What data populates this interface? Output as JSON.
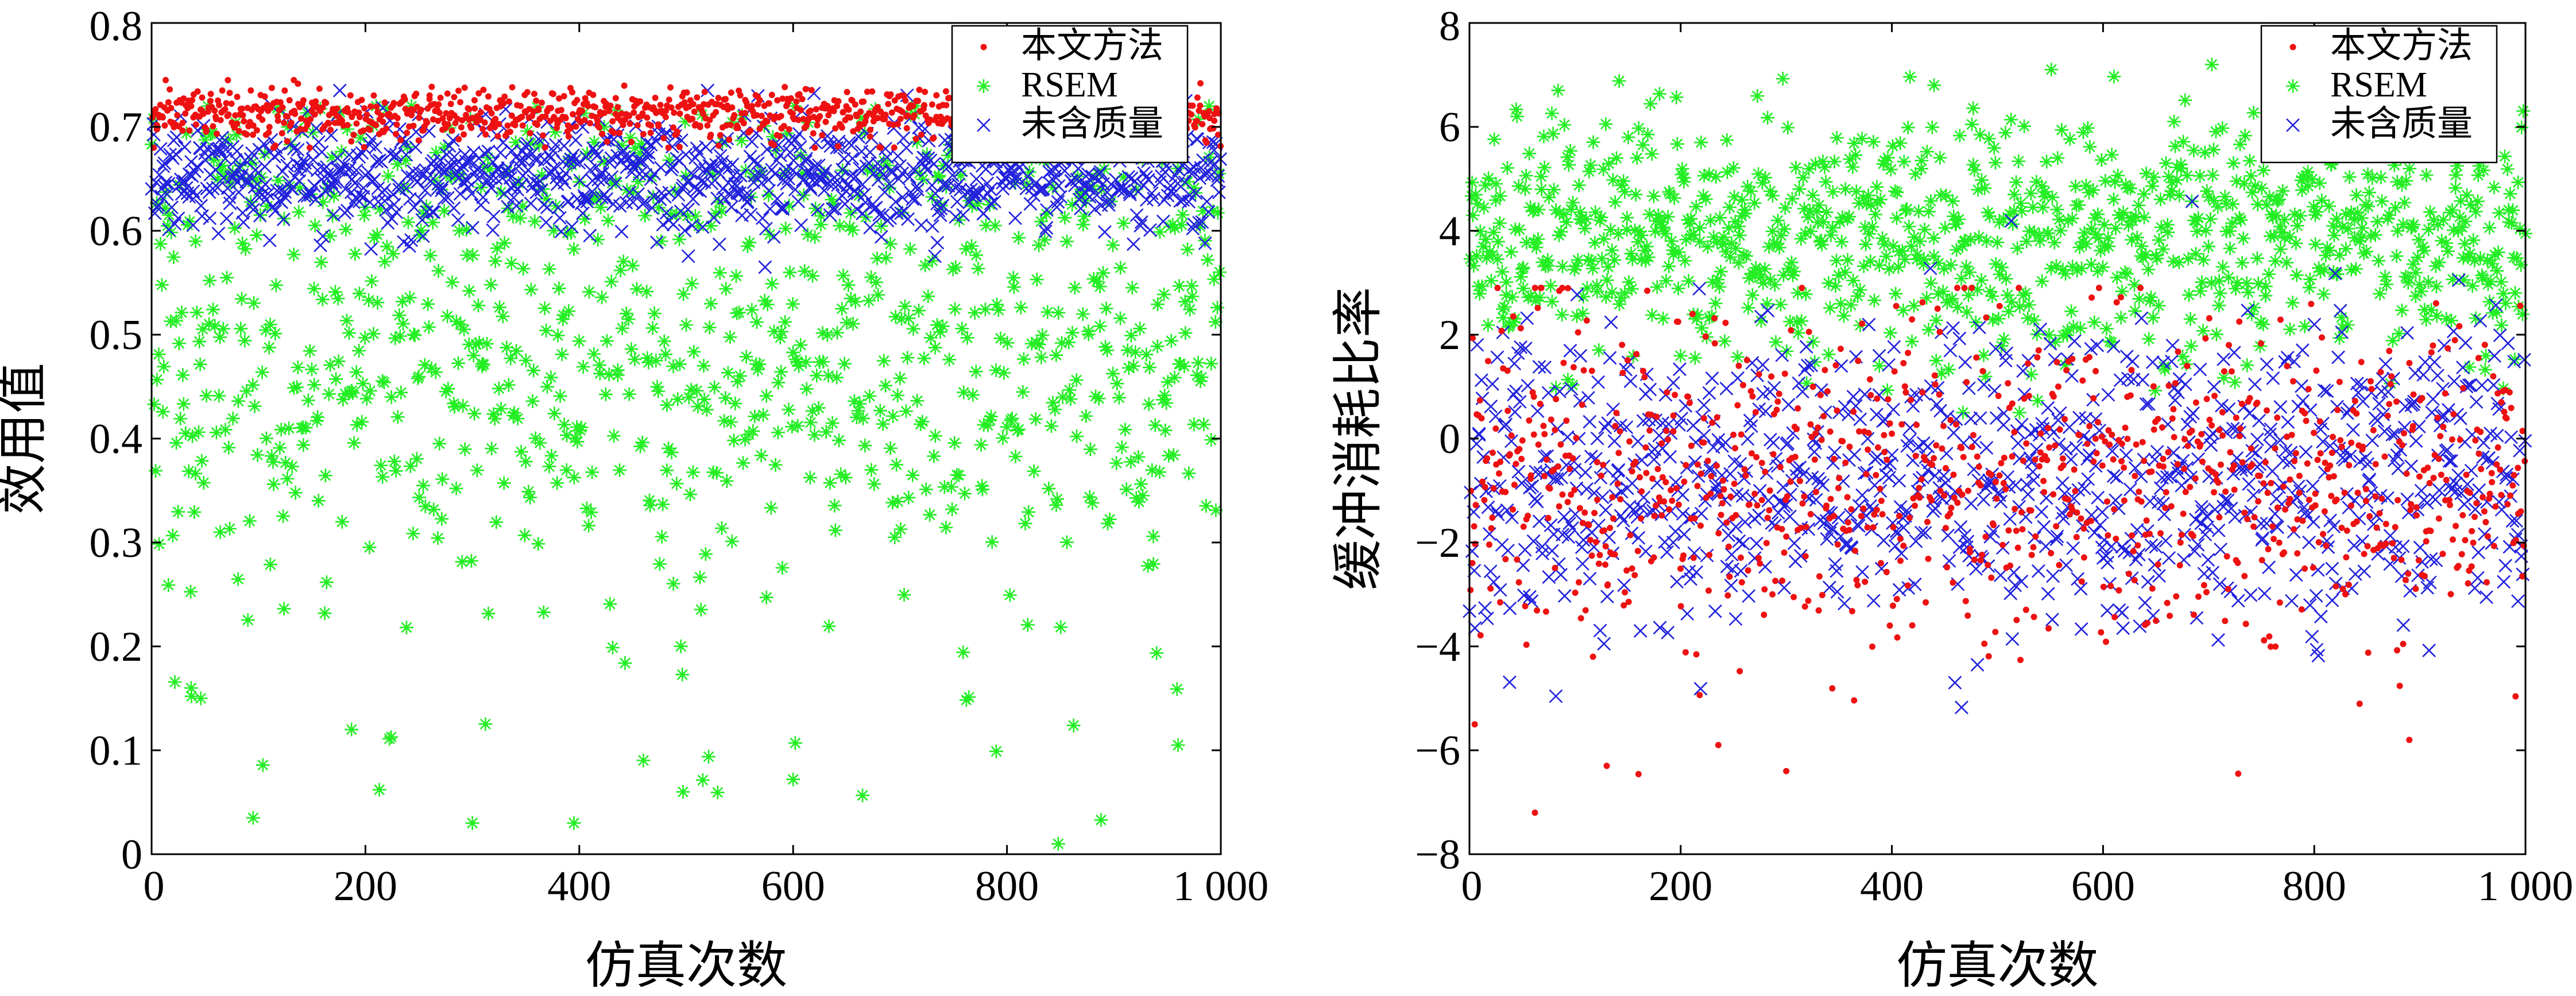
{
  "charts": [
    {
      "id": "left",
      "chart_data": {
        "type": "scatter",
        "xlabel": "仿真次数",
        "ylabel": "效用值",
        "xlim": [
          0,
          1000
        ],
        "ylim": [
          0,
          0.8
        ],
        "xticks": [
          0,
          200,
          400,
          600,
          800,
          1000
        ],
        "xtick_labels": [
          "0",
          "200",
          "400",
          "600",
          "800",
          "1 000"
        ],
        "yticks": [
          0,
          0.1,
          0.2,
          0.3,
          0.4,
          0.5,
          0.6,
          0.7,
          0.8
        ],
        "ytick_labels": [
          "0",
          "0.1",
          "0.2",
          "0.3",
          "0.4",
          "0.5",
          "0.6",
          "0.7",
          "0.8"
        ],
        "legend_position": "top-right",
        "grid": false,
        "series": [
          {
            "name": "本文方法",
            "marker": "dot",
            "color": "#ee1111",
            "distribution": {
              "count": 1000,
              "type": "normal",
              "mean": 0.712,
              "sd": 0.013,
              "min": 0.68,
              "max": 0.745
            }
          },
          {
            "name": "RSEM",
            "marker": "asterisk",
            "color": "#22ee22",
            "distribution": {
              "count": 1000,
              "type": "mixture",
              "mean": 0.47,
              "sd": 0.13,
              "min": 0.0,
              "max": 0.72
            }
          },
          {
            "name": "未含质量",
            "marker": "cross",
            "color": "#2222dd",
            "distribution": {
              "count": 1000,
              "type": "normal",
              "mean": 0.655,
              "sd": 0.028,
              "min": 0.55,
              "max": 0.735
            }
          }
        ],
        "sample_points": {
          "RSEM": [
            [
              37,
              0.16
            ],
            [
              46,
              0.15
            ],
            [
              95,
              0.035
            ],
            [
              187,
              0.12
            ],
            [
              300,
              0.03
            ],
            [
              395,
              0.03
            ],
            [
              497,
              0.06
            ],
            [
              600,
              0.072
            ],
            [
              602,
              0.107
            ],
            [
              790,
              0.099
            ],
            [
              848,
              0.01
            ],
            [
              888,
              0.033
            ],
            [
              960,
              0.105
            ]
          ]
        }
      }
    },
    {
      "id": "right",
      "chart_data": {
        "type": "scatter",
        "xlabel": "仿真次数",
        "ylabel": "缓冲消耗比率",
        "xlim": [
          0,
          1000
        ],
        "ylim": [
          -8,
          8
        ],
        "xticks": [
          0,
          200,
          400,
          600,
          800,
          1000
        ],
        "xtick_labels": [
          "0",
          "200",
          "400",
          "600",
          "800",
          "1 000"
        ],
        "yticks": [
          -8,
          -6,
          -4,
          -2,
          0,
          2,
          4,
          6,
          8
        ],
        "ytick_labels": [
          "−8",
          "−6",
          "−4",
          "−2",
          "0",
          "2",
          "4",
          "6",
          "8"
        ],
        "legend_position": "top-right",
        "grid": false,
        "series": [
          {
            "name": "本文方法",
            "marker": "dot",
            "color": "#ee1111",
            "distribution": {
              "count": 1000,
              "type": "normal",
              "mean": -0.8,
              "sd": 1.6,
              "min": -7.2,
              "max": 2.9
            }
          },
          {
            "name": "RSEM",
            "marker": "asterisk",
            "color": "#22ee22",
            "distribution": {
              "count": 1000,
              "type": "normal",
              "mean": 3.9,
              "sd": 1.2,
              "min": 0.5,
              "max": 7.2
            }
          },
          {
            "name": "未含质量",
            "marker": "cross",
            "color": "#2222dd",
            "distribution": {
              "count": 1000,
              "type": "normal",
              "mean": -0.7,
              "sd": 1.45,
              "min": -5.6,
              "max": 4.7
            }
          }
        ],
        "sample_points": {
          "本文方法": [
            [
              5,
              -5.5
            ],
            [
              62,
              -7.2
            ],
            [
              130,
              -6.3
            ],
            [
              300,
              -6.4
            ],
            [
              728,
              -6.45
            ],
            [
              890,
              -5.8
            ]
          ],
          "RSEM": [
            [
              703,
              7.2
            ],
            [
              440,
              6.8
            ]
          ]
        }
      }
    }
  ]
}
